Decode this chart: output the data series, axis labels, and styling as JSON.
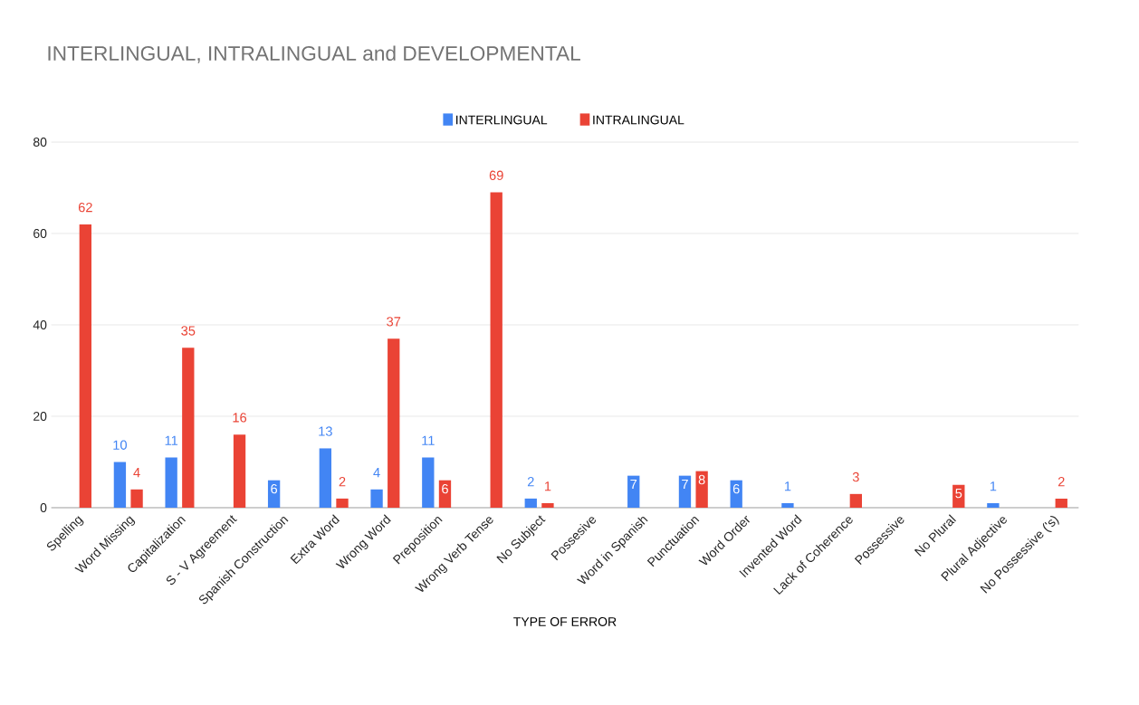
{
  "chart_data": {
    "type": "bar",
    "title": "INTERLINGUAL, INTRALINGUAL and DEVELOPMENTAL",
    "xlabel": "TYPE OF ERROR",
    "categories": [
      "Spelling",
      "Word Missing",
      "Capitalization",
      "S - V Agreement",
      "Spanish Construction",
      "Extra Word",
      "Wrong Word",
      "Preposition",
      "Wrong Verb Tense",
      "No Subject",
      "Possesive",
      "Word in Spanish",
      "Punctuation",
      "Word Order",
      "Invented Word",
      "Lack of Coherence",
      "Possessive",
      "No Plural",
      "Plural Adjective",
      "No Possessive ('s)"
    ],
    "series": [
      {
        "name": "INTERLINGUAL",
        "color": "#4285f4",
        "values": [
          null,
          10,
          11,
          null,
          6,
          13,
          4,
          11,
          null,
          2,
          null,
          7,
          7,
          6,
          1,
          null,
          null,
          null,
          1,
          null
        ]
      },
      {
        "name": "INTRALINGUAL",
        "color": "#ea4335",
        "values": [
          62,
          4,
          35,
          16,
          null,
          2,
          37,
          6,
          69,
          1,
          null,
          null,
          8,
          null,
          null,
          3,
          null,
          5,
          null,
          2
        ]
      }
    ],
    "ylim": [
      0,
      80
    ],
    "yticks": [
      0,
      20,
      40,
      60,
      80
    ],
    "grid": "y",
    "legend": "top",
    "data_labels": true
  }
}
